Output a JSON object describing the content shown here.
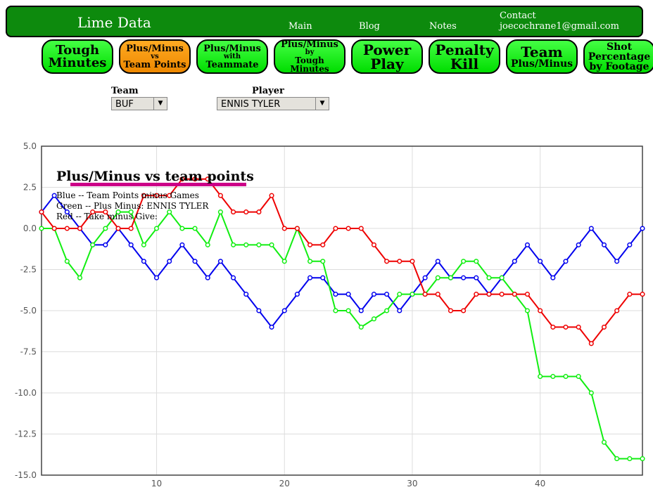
{
  "header": {
    "brand": "Lime Data",
    "links": [
      "Main",
      "Blog",
      "Notes"
    ],
    "contact": "Contact",
    "email": "joecochrane1@gmail.com"
  },
  "nav": [
    [
      "Tough",
      "Minutes"
    ],
    [
      "Plus/Minus",
      "vs",
      "Team Points"
    ],
    [
      "Plus/Minus",
      "with",
      "Teammate"
    ],
    [
      "Plus/Minus",
      "by",
      "Tough Minutes"
    ],
    [
      "Power",
      "Play"
    ],
    [
      "Penalty",
      "Kill"
    ],
    [
      "Team",
      "Plus/Minus"
    ],
    [
      "Shot",
      "Percentage",
      "by Footage"
    ]
  ],
  "filters": {
    "team_label": "Team",
    "team": "BUF",
    "player_label": "Player",
    "player": "ENNIS TYLER"
  },
  "chart_data": {
    "type": "line",
    "title": "Plus/Minus vs team points",
    "notes": [
      "Blue -- Team Points minus Games",
      "Green -- Plus Minus: ENNIS TYLER",
      "Red -- Take minus Give:"
    ],
    "x": [
      1,
      2,
      3,
      4,
      5,
      6,
      7,
      8,
      9,
      10,
      11,
      12,
      13,
      14,
      15,
      16,
      17,
      18,
      19,
      20,
      21,
      22,
      23,
      24,
      25,
      26,
      27,
      28,
      29,
      30,
      31,
      32,
      33,
      34,
      35,
      36,
      37,
      38,
      39,
      40,
      41,
      42,
      43,
      44,
      45,
      46,
      47,
      48
    ],
    "series": [
      {
        "color": "#0000ee",
        "values": [
          1,
          2,
          1,
          0,
          -1,
          -1,
          0,
          -1,
          -2,
          -3,
          -2,
          -1,
          -2,
          -3,
          -2,
          -3,
          -4,
          -5,
          -6,
          -5,
          -4,
          -3,
          -3,
          -4,
          -4,
          -5,
          -4,
          -4,
          -5,
          -4,
          -3,
          -2,
          -3,
          -3,
          -3,
          -4,
          -3,
          -2,
          -1,
          -2,
          -3,
          -2,
          -1,
          0,
          -1,
          -2,
          -1,
          0
        ]
      },
      {
        "color": "#11ee11",
        "values": [
          0,
          0,
          -2,
          -3,
          -1,
          0,
          1,
          1,
          -1,
          0,
          1,
          0,
          0,
          -1,
          1,
          -1,
          -1,
          -1,
          -1,
          -2,
          0,
          -2,
          -2,
          -5,
          -5,
          -6,
          -5.5,
          -5,
          -4,
          -4,
          -4,
          -3,
          -3,
          -2,
          -2,
          -3,
          -3,
          -4,
          -5,
          -9,
          -9,
          -9,
          -9,
          -10,
          -13,
          -14,
          -14,
          -14
        ]
      },
      {
        "color": "#ee0000",
        "values": [
          1,
          0,
          0,
          0,
          1,
          1,
          0,
          0,
          2,
          2,
          2,
          3,
          3,
          3,
          2,
          1,
          1,
          1,
          2,
          0,
          0,
          -1,
          -1,
          0,
          0,
          0,
          -1,
          -2,
          -2,
          -2,
          -4,
          -4,
          -5,
          -5,
          -4,
          -4,
          -4,
          -4,
          -4,
          -5,
          -6,
          -6,
          -6,
          -7,
          -6,
          -5,
          -4,
          -4
        ]
      }
    ],
    "xlim": [
      1,
      48
    ],
    "ylim": [
      -15,
      5
    ],
    "xticks": [
      10,
      20,
      30,
      40
    ],
    "yticks": [
      {
        "value": 5,
        "label": "5.0"
      },
      2.5,
      {
        "value": 0,
        "label": "0.0"
      },
      -2.5,
      {
        "value": -5,
        "label": "-5.0"
      },
      -7.5,
      {
        "value": -10,
        "label": "-10.0"
      },
      -12.5,
      {
        "value": -15,
        "label": "-15.0"
      }
    ],
    "grid": true
  }
}
